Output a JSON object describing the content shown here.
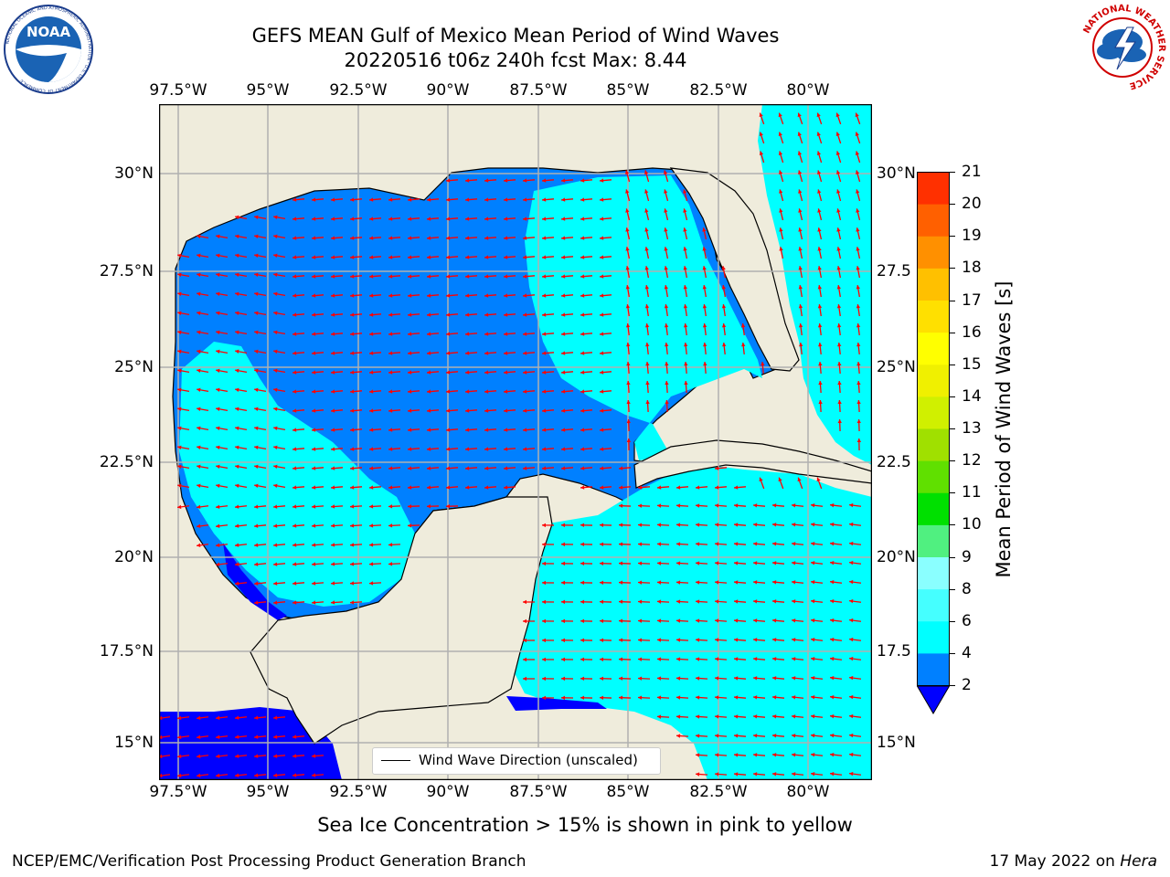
{
  "header": {
    "title_line1": "GEFS MEAN Gulf of Mexico Mean Period of Wind Waves",
    "title_line2": "20220516 t06z 240h fcst   Max: 8.44"
  },
  "logos": {
    "left": "NOAA",
    "left_ring_text": "NATIONAL OCEANIC AND ATMOSPHERIC ADMINISTRATION · U.S. DEPARTMENT OF COMMERCE",
    "right_ring_text": "NATIONAL WEATHER SERVICE"
  },
  "map": {
    "lon_ticks": [
      "97.5°W",
      "95°W",
      "92.5°W",
      "90°W",
      "87.5°W",
      "85°W",
      "82.5°W",
      "80°W"
    ],
    "lat_ticks": [
      "30°N",
      "27.5°N",
      "25°N",
      "22.5°N",
      "20°N",
      "17.5°N",
      "15°N"
    ],
    "lat_ticks_right": [
      "30°N",
      "27.5",
      "25°N",
      "22.5",
      "20°N",
      "17.5",
      "15°N"
    ],
    "colors": {
      "land": "#efecdc",
      "coast": "#000000",
      "grid": "#b0b0b0",
      "arrow": "#ff0000"
    }
  },
  "legend": {
    "text": "Wind Wave Direction (unscaled)"
  },
  "colorbar": {
    "label": "Mean Period of Wind Waves [s]",
    "ticks": [
      "2",
      "4",
      "6",
      "8",
      "9",
      "10",
      "11",
      "12",
      "13",
      "14",
      "15",
      "16",
      "17",
      "18",
      "19",
      "20",
      "21"
    ],
    "colors": [
      "#0080ff",
      "#00ffff",
      "#45ffff",
      "#8affff",
      "#b0ffff",
      "#50f080",
      "#00e000",
      "#60e000",
      "#a0e000",
      "#d0f000",
      "#f0f000",
      "#ffff00",
      "#ffe000",
      "#ffc000",
      "#ff9000",
      "#ff6000",
      "#ff3000",
      "#ff0000"
    ],
    "under_color": "#0000ff"
  },
  "footer": {
    "note": "Sea Ice Concentration > 15% is shown in pink to yellow",
    "left": "NCEP/EMC/Verification Post Processing Product Generation Branch",
    "right_date": "17 May 2022 on",
    "right_host": "Hera"
  }
}
